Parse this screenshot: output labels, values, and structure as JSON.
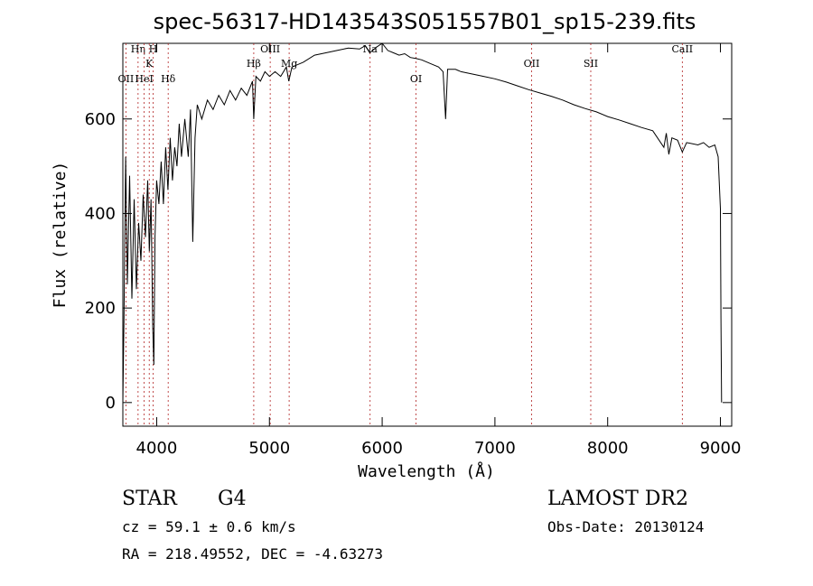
{
  "chart_data": {
    "type": "line",
    "title": "spec-56317-HD143543S051557B01_sp15-239.fits",
    "xlabel": "Wavelength (Å)",
    "ylabel": "Flux (relative)",
    "xlim": [
      3700,
      9100
    ],
    "ylim": [
      -50,
      760
    ],
    "xticks": [
      "4000",
      "5000",
      "6000",
      "7000",
      "8000",
      "9000"
    ],
    "yticks": [
      "0",
      "200",
      "400",
      "600"
    ],
    "grid": false,
    "series": [
      {
        "color": "#000000",
        "points": [
          [
            3700,
            0
          ],
          [
            3710,
            170
          ],
          [
            3725,
            520
          ],
          [
            3740,
            250
          ],
          [
            3760,
            480
          ],
          [
            3780,
            220
          ],
          [
            3800,
            430
          ],
          [
            3820,
            240
          ],
          [
            3840,
            380
          ],
          [
            3860,
            300
          ],
          [
            3880,
            440
          ],
          [
            3900,
            350
          ],
          [
            3920,
            470
          ],
          [
            3935,
            320
          ],
          [
            3950,
            430
          ],
          [
            3965,
            160
          ],
          [
            3975,
            80
          ],
          [
            3985,
            350
          ],
          [
            4000,
            470
          ],
          [
            4020,
            420
          ],
          [
            4040,
            510
          ],
          [
            4060,
            420
          ],
          [
            4080,
            540
          ],
          [
            4100,
            450
          ],
          [
            4120,
            560
          ],
          [
            4140,
            470
          ],
          [
            4160,
            540
          ],
          [
            4180,
            500
          ],
          [
            4200,
            590
          ],
          [
            4220,
            520
          ],
          [
            4250,
            600
          ],
          [
            4280,
            520
          ],
          [
            4300,
            620
          ],
          [
            4320,
            340
          ],
          [
            4340,
            560
          ],
          [
            4360,
            630
          ],
          [
            4400,
            600
          ],
          [
            4450,
            640
          ],
          [
            4500,
            620
          ],
          [
            4550,
            650
          ],
          [
            4600,
            630
          ],
          [
            4650,
            660
          ],
          [
            4700,
            640
          ],
          [
            4750,
            665
          ],
          [
            4800,
            650
          ],
          [
            4850,
            680
          ],
          [
            4861,
            600
          ],
          [
            4880,
            690
          ],
          [
            4920,
            680
          ],
          [
            4960,
            700
          ],
          [
            5000,
            690
          ],
          [
            5050,
            700
          ],
          [
            5100,
            690
          ],
          [
            5150,
            710
          ],
          [
            5172,
            680
          ],
          [
            5200,
            710
          ],
          [
            5300,
            720
          ],
          [
            5400,
            735
          ],
          [
            5500,
            740
          ],
          [
            5600,
            745
          ],
          [
            5700,
            750
          ],
          [
            5800,
            748
          ],
          [
            5850,
            755
          ],
          [
            5890,
            740
          ],
          [
            5950,
            752
          ],
          [
            6000,
            760
          ],
          [
            6050,
            745
          ],
          [
            6100,
            740
          ],
          [
            6150,
            735
          ],
          [
            6200,
            738
          ],
          [
            6250,
            730
          ],
          [
            6300,
            728
          ],
          [
            6350,
            725
          ],
          [
            6400,
            720
          ],
          [
            6450,
            715
          ],
          [
            6500,
            710
          ],
          [
            6540,
            700
          ],
          [
            6563,
            600
          ],
          [
            6580,
            705
          ],
          [
            6650,
            705
          ],
          [
            6700,
            700
          ],
          [
            6800,
            695
          ],
          [
            6900,
            690
          ],
          [
            7000,
            685
          ],
          [
            7100,
            678
          ],
          [
            7200,
            670
          ],
          [
            7300,
            662
          ],
          [
            7400,
            655
          ],
          [
            7500,
            648
          ],
          [
            7600,
            640
          ],
          [
            7700,
            630
          ],
          [
            7800,
            622
          ],
          [
            7900,
            615
          ],
          [
            8000,
            605
          ],
          [
            8100,
            598
          ],
          [
            8200,
            590
          ],
          [
            8300,
            582
          ],
          [
            8400,
            575
          ],
          [
            8498,
            540
          ],
          [
            8520,
            570
          ],
          [
            8542,
            525
          ],
          [
            8570,
            560
          ],
          [
            8620,
            555
          ],
          [
            8662,
            530
          ],
          [
            8700,
            550
          ],
          [
            8800,
            545
          ],
          [
            8850,
            550
          ],
          [
            8900,
            540
          ],
          [
            8950,
            545
          ],
          [
            8980,
            520
          ],
          [
            9000,
            410
          ],
          [
            9005,
            180
          ],
          [
            9010,
            0
          ]
        ]
      }
    ],
    "spectral_lines": [
      {
        "name": "OII",
        "wavelength": 3727
      },
      {
        "name": "Hη",
        "wavelength": 3835
      },
      {
        "name": "HeI",
        "wavelength": 3889
      },
      {
        "name": "K",
        "wavelength": 3934
      },
      {
        "name": "H",
        "wavelength": 3969
      },
      {
        "name": "Hδ",
        "wavelength": 4102
      },
      {
        "name": "Hβ",
        "wavelength": 4861
      },
      {
        "name": "OIII",
        "wavelength": 5007
      },
      {
        "name": "Mg",
        "wavelength": 5175
      },
      {
        "name": "Na",
        "wavelength": 5893
      },
      {
        "name": "OI",
        "wavelength": 6300
      },
      {
        "name": "OII",
        "wavelength": 7325
      },
      {
        "name": "SII",
        "wavelength": 7850
      },
      {
        "name": "CaII",
        "wavelength": 8662
      }
    ]
  },
  "info": {
    "object_class": "STAR",
    "subclass": "G4",
    "survey": "LAMOST DR2",
    "cz": "cz = 59.1 ± 0.6 km/s",
    "obs_date": "Obs-Date: 20130124",
    "radec": "RA = 218.49552, DEC =  -4.63273"
  }
}
